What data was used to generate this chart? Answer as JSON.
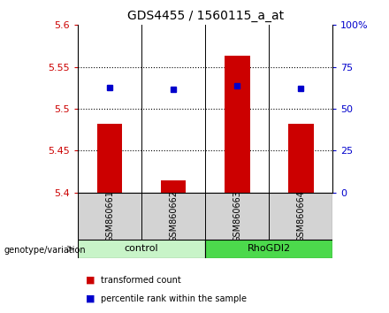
{
  "title": "GDS4455 / 1560115_a_at",
  "samples": [
    "GSM860661",
    "GSM860662",
    "GSM860663",
    "GSM860664"
  ],
  "bar_values": [
    5.482,
    5.415,
    5.563,
    5.482
  ],
  "bar_base": 5.4,
  "dot_values": [
    5.525,
    5.523,
    5.528,
    5.524
  ],
  "ylim_left": [
    5.4,
    5.6
  ],
  "ylim_right": [
    0,
    100
  ],
  "yticks_left": [
    5.4,
    5.45,
    5.5,
    5.55,
    5.6
  ],
  "yticks_right": [
    0,
    25,
    50,
    75,
    100
  ],
  "ytick_labels_left": [
    "5.4",
    "5.45",
    "5.5",
    "5.55",
    "5.6"
  ],
  "ytick_labels_right": [
    "0",
    "25",
    "50",
    "75",
    "100%"
  ],
  "bar_color": "#cc0000",
  "dot_color": "#0000cc",
  "control_color": "#c8f4c8",
  "rhodgi2_color": "#4cd94c",
  "xlabel_area_color": "#d3d3d3",
  "legend_bar_label": "transformed count",
  "legend_dot_label": "percentile rank within the sample",
  "genotype_label": "genotype/variation",
  "hgrid_values": [
    5.45,
    5.5,
    5.55
  ],
  "bar_width": 0.4
}
